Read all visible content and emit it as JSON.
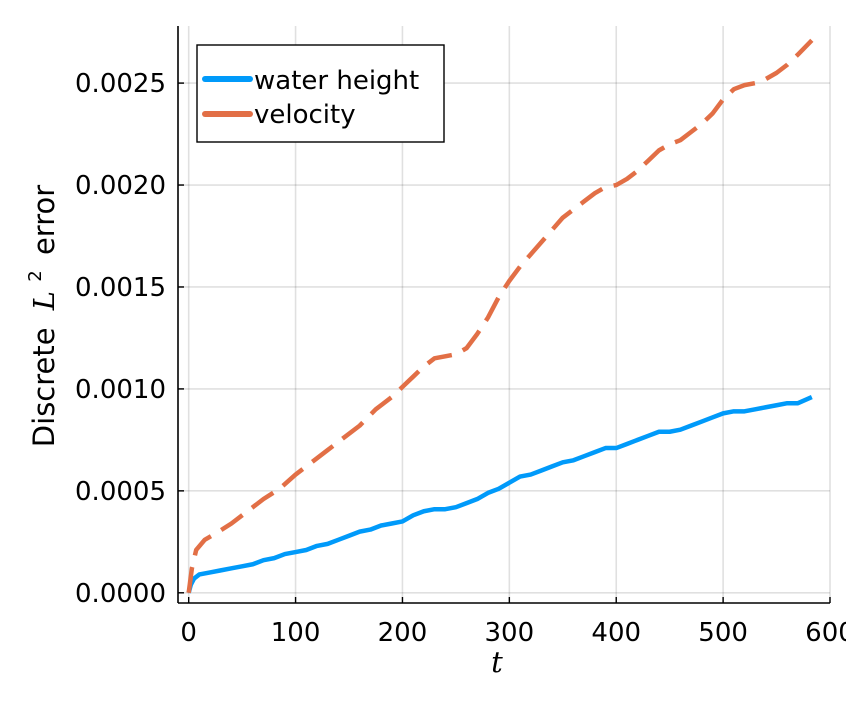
{
  "chart_data": {
    "type": "line",
    "title": "",
    "xlabel": "t",
    "ylabel": {
      "prefix": "Discrete",
      "symbol": "L",
      "superscript": "2",
      "suffix": "error"
    },
    "xlim": [
      -10,
      600
    ],
    "ylim": [
      -5e-05,
      0.00278
    ],
    "xticks": [
      0,
      100,
      200,
      300,
      400,
      500,
      600
    ],
    "xtick_labels": [
      "0",
      "100",
      "200",
      "300",
      "400",
      "500",
      "600"
    ],
    "yticks": [
      0,
      0.0005,
      0.001,
      0.0015,
      0.002,
      0.0025
    ],
    "ytick_labels": [
      "0.0000",
      "0.0005",
      "0.0010",
      "0.0015",
      "0.0020",
      "0.0025"
    ],
    "grid": true,
    "legend_position": "top-left",
    "series": [
      {
        "name": "water height",
        "color": "#009AFA",
        "style": "solid",
        "x": [
          0,
          2,
          5,
          10,
          20,
          30,
          40,
          50,
          60,
          70,
          80,
          90,
          100,
          110,
          120,
          130,
          140,
          150,
          160,
          170,
          180,
          190,
          200,
          210,
          220,
          230,
          240,
          250,
          260,
          270,
          280,
          290,
          300,
          310,
          320,
          330,
          340,
          350,
          360,
          370,
          380,
          390,
          400,
          410,
          420,
          430,
          440,
          450,
          460,
          470,
          480,
          490,
          500,
          510,
          520,
          530,
          540,
          550,
          560,
          570,
          583
        ],
        "y": [
          0,
          4e-05,
          7e-05,
          9e-05,
          0.0001,
          0.00011,
          0.00012,
          0.00013,
          0.00014,
          0.00016,
          0.00017,
          0.00019,
          0.0002,
          0.00021,
          0.00023,
          0.00024,
          0.00026,
          0.00028,
          0.0003,
          0.00031,
          0.00033,
          0.00034,
          0.00035,
          0.00038,
          0.0004,
          0.00041,
          0.00041,
          0.00042,
          0.00044,
          0.00046,
          0.00049,
          0.00051,
          0.00054,
          0.00057,
          0.00058,
          0.0006,
          0.00062,
          0.00064,
          0.00065,
          0.00067,
          0.00069,
          0.00071,
          0.00071,
          0.00073,
          0.00075,
          0.00077,
          0.00079,
          0.00079,
          0.0008,
          0.00082,
          0.00084,
          0.00086,
          0.00088,
          0.00089,
          0.00089,
          0.0009,
          0.00091,
          0.00092,
          0.00093,
          0.00093,
          0.00096
        ]
      },
      {
        "name": "velocity",
        "color": "#E26F46",
        "style": "dashed",
        "x": [
          0,
          3,
          7,
          15,
          25,
          40,
          55,
          70,
          85,
          100,
          115,
          130,
          145,
          160,
          175,
          190,
          200,
          210,
          220,
          230,
          240,
          250,
          260,
          270,
          280,
          290,
          300,
          310,
          320,
          330,
          340,
          350,
          360,
          370,
          380,
          390,
          400,
          410,
          420,
          430,
          440,
          450,
          460,
          470,
          480,
          490,
          500,
          510,
          520,
          530,
          540,
          550,
          560,
          570,
          583
        ],
        "y": [
          0,
          0.00012,
          0.00021,
          0.00026,
          0.00029,
          0.00034,
          0.0004,
          0.00046,
          0.00051,
          0.00058,
          0.00064,
          0.0007,
          0.00076,
          0.00082,
          0.0009,
          0.00096,
          0.00101,
          0.00106,
          0.00111,
          0.00115,
          0.00116,
          0.00117,
          0.0012,
          0.00127,
          0.00135,
          0.00145,
          0.00153,
          0.0016,
          0.00166,
          0.00172,
          0.00178,
          0.00184,
          0.00188,
          0.00192,
          0.00196,
          0.00199,
          0.002,
          0.00203,
          0.00207,
          0.00212,
          0.00217,
          0.0022,
          0.00222,
          0.00226,
          0.0023,
          0.00235,
          0.00242,
          0.00247,
          0.00249,
          0.0025,
          0.00252,
          0.00255,
          0.00259,
          0.00264,
          0.00271
        ]
      }
    ]
  }
}
